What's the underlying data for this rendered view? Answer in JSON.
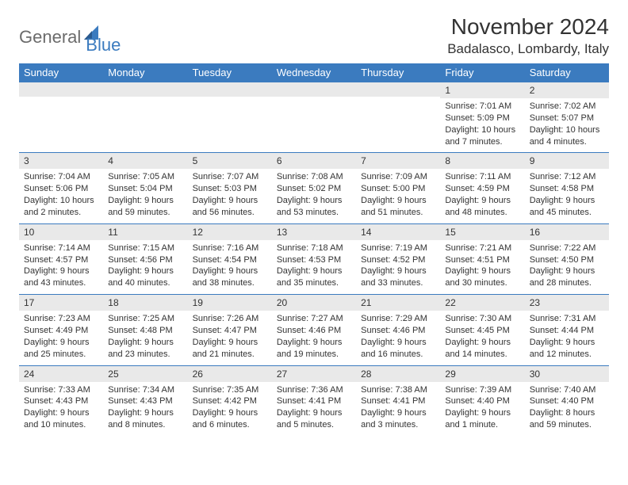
{
  "logo": {
    "general": "General",
    "blue": "Blue"
  },
  "title": "November 2024",
  "location": "Badalasco, Lombardy, Italy",
  "colors": {
    "header_bg": "#3b7bbf",
    "header_text": "#ffffff",
    "daynum_bg": "#e9e9e9",
    "row_border": "#3b7bbf",
    "body_text": "#333333",
    "logo_gray": "#6b6b6b",
    "logo_blue": "#3b7bbf",
    "page_bg": "#ffffff"
  },
  "day_headers": [
    "Sunday",
    "Monday",
    "Tuesday",
    "Wednesday",
    "Thursday",
    "Friday",
    "Saturday"
  ],
  "weeks": [
    [
      {
        "day": "",
        "sunrise": "",
        "sunset": "",
        "daylight": ""
      },
      {
        "day": "",
        "sunrise": "",
        "sunset": "",
        "daylight": ""
      },
      {
        "day": "",
        "sunrise": "",
        "sunset": "",
        "daylight": ""
      },
      {
        "day": "",
        "sunrise": "",
        "sunset": "",
        "daylight": ""
      },
      {
        "day": "",
        "sunrise": "",
        "sunset": "",
        "daylight": ""
      },
      {
        "day": "1",
        "sunrise": "Sunrise: 7:01 AM",
        "sunset": "Sunset: 5:09 PM",
        "daylight": "Daylight: 10 hours and 7 minutes."
      },
      {
        "day": "2",
        "sunrise": "Sunrise: 7:02 AM",
        "sunset": "Sunset: 5:07 PM",
        "daylight": "Daylight: 10 hours and 4 minutes."
      }
    ],
    [
      {
        "day": "3",
        "sunrise": "Sunrise: 7:04 AM",
        "sunset": "Sunset: 5:06 PM",
        "daylight": "Daylight: 10 hours and 2 minutes."
      },
      {
        "day": "4",
        "sunrise": "Sunrise: 7:05 AM",
        "sunset": "Sunset: 5:04 PM",
        "daylight": "Daylight: 9 hours and 59 minutes."
      },
      {
        "day": "5",
        "sunrise": "Sunrise: 7:07 AM",
        "sunset": "Sunset: 5:03 PM",
        "daylight": "Daylight: 9 hours and 56 minutes."
      },
      {
        "day": "6",
        "sunrise": "Sunrise: 7:08 AM",
        "sunset": "Sunset: 5:02 PM",
        "daylight": "Daylight: 9 hours and 53 minutes."
      },
      {
        "day": "7",
        "sunrise": "Sunrise: 7:09 AM",
        "sunset": "Sunset: 5:00 PM",
        "daylight": "Daylight: 9 hours and 51 minutes."
      },
      {
        "day": "8",
        "sunrise": "Sunrise: 7:11 AM",
        "sunset": "Sunset: 4:59 PM",
        "daylight": "Daylight: 9 hours and 48 minutes."
      },
      {
        "day": "9",
        "sunrise": "Sunrise: 7:12 AM",
        "sunset": "Sunset: 4:58 PM",
        "daylight": "Daylight: 9 hours and 45 minutes."
      }
    ],
    [
      {
        "day": "10",
        "sunrise": "Sunrise: 7:14 AM",
        "sunset": "Sunset: 4:57 PM",
        "daylight": "Daylight: 9 hours and 43 minutes."
      },
      {
        "day": "11",
        "sunrise": "Sunrise: 7:15 AM",
        "sunset": "Sunset: 4:56 PM",
        "daylight": "Daylight: 9 hours and 40 minutes."
      },
      {
        "day": "12",
        "sunrise": "Sunrise: 7:16 AM",
        "sunset": "Sunset: 4:54 PM",
        "daylight": "Daylight: 9 hours and 38 minutes."
      },
      {
        "day": "13",
        "sunrise": "Sunrise: 7:18 AM",
        "sunset": "Sunset: 4:53 PM",
        "daylight": "Daylight: 9 hours and 35 minutes."
      },
      {
        "day": "14",
        "sunrise": "Sunrise: 7:19 AM",
        "sunset": "Sunset: 4:52 PM",
        "daylight": "Daylight: 9 hours and 33 minutes."
      },
      {
        "day": "15",
        "sunrise": "Sunrise: 7:21 AM",
        "sunset": "Sunset: 4:51 PM",
        "daylight": "Daylight: 9 hours and 30 minutes."
      },
      {
        "day": "16",
        "sunrise": "Sunrise: 7:22 AM",
        "sunset": "Sunset: 4:50 PM",
        "daylight": "Daylight: 9 hours and 28 minutes."
      }
    ],
    [
      {
        "day": "17",
        "sunrise": "Sunrise: 7:23 AM",
        "sunset": "Sunset: 4:49 PM",
        "daylight": "Daylight: 9 hours and 25 minutes."
      },
      {
        "day": "18",
        "sunrise": "Sunrise: 7:25 AM",
        "sunset": "Sunset: 4:48 PM",
        "daylight": "Daylight: 9 hours and 23 minutes."
      },
      {
        "day": "19",
        "sunrise": "Sunrise: 7:26 AM",
        "sunset": "Sunset: 4:47 PM",
        "daylight": "Daylight: 9 hours and 21 minutes."
      },
      {
        "day": "20",
        "sunrise": "Sunrise: 7:27 AM",
        "sunset": "Sunset: 4:46 PM",
        "daylight": "Daylight: 9 hours and 19 minutes."
      },
      {
        "day": "21",
        "sunrise": "Sunrise: 7:29 AM",
        "sunset": "Sunset: 4:46 PM",
        "daylight": "Daylight: 9 hours and 16 minutes."
      },
      {
        "day": "22",
        "sunrise": "Sunrise: 7:30 AM",
        "sunset": "Sunset: 4:45 PM",
        "daylight": "Daylight: 9 hours and 14 minutes."
      },
      {
        "day": "23",
        "sunrise": "Sunrise: 7:31 AM",
        "sunset": "Sunset: 4:44 PM",
        "daylight": "Daylight: 9 hours and 12 minutes."
      }
    ],
    [
      {
        "day": "24",
        "sunrise": "Sunrise: 7:33 AM",
        "sunset": "Sunset: 4:43 PM",
        "daylight": "Daylight: 9 hours and 10 minutes."
      },
      {
        "day": "25",
        "sunrise": "Sunrise: 7:34 AM",
        "sunset": "Sunset: 4:43 PM",
        "daylight": "Daylight: 9 hours and 8 minutes."
      },
      {
        "day": "26",
        "sunrise": "Sunrise: 7:35 AM",
        "sunset": "Sunset: 4:42 PM",
        "daylight": "Daylight: 9 hours and 6 minutes."
      },
      {
        "day": "27",
        "sunrise": "Sunrise: 7:36 AM",
        "sunset": "Sunset: 4:41 PM",
        "daylight": "Daylight: 9 hours and 5 minutes."
      },
      {
        "day": "28",
        "sunrise": "Sunrise: 7:38 AM",
        "sunset": "Sunset: 4:41 PM",
        "daylight": "Daylight: 9 hours and 3 minutes."
      },
      {
        "day": "29",
        "sunrise": "Sunrise: 7:39 AM",
        "sunset": "Sunset: 4:40 PM",
        "daylight": "Daylight: 9 hours and 1 minute."
      },
      {
        "day": "30",
        "sunrise": "Sunrise: 7:40 AM",
        "sunset": "Sunset: 4:40 PM",
        "daylight": "Daylight: 8 hours and 59 minutes."
      }
    ]
  ]
}
